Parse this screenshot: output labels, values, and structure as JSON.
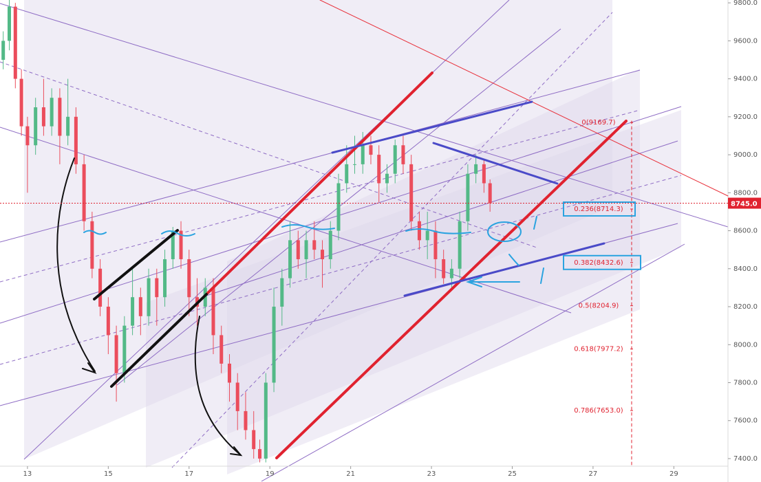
{
  "chart_data": {
    "type": "candlestick",
    "x": [
      12.4,
      12.55,
      12.7,
      12.85,
      13.0,
      13.2,
      13.4,
      13.6,
      13.8,
      14.0,
      14.2,
      14.4,
      14.6,
      14.8,
      15.0,
      15.2,
      15.4,
      15.6,
      15.8,
      16.0,
      16.2,
      16.4,
      16.6,
      16.8,
      17.0,
      17.2,
      17.4,
      17.6,
      17.8,
      18.0,
      18.2,
      18.4,
      18.6,
      18.75,
      18.9,
      19.1,
      19.3,
      19.5,
      19.7,
      19.9,
      20.1,
      20.3,
      20.5,
      20.7,
      20.9,
      21.1,
      21.3,
      21.5,
      21.7,
      21.9,
      22.1,
      22.3,
      22.5,
      22.7,
      22.9,
      23.1,
      23.3,
      23.5,
      23.7,
      23.9,
      24.1,
      24.3,
      24.45
    ],
    "open": [
      9500,
      9600,
      9780,
      9400,
      9150,
      9050,
      9250,
      9150,
      9300,
      9100,
      9200,
      8950,
      8650,
      8400,
      8200,
      8050,
      7850,
      8100,
      8250,
      8150,
      8350,
      8250,
      8450,
      8600,
      8450,
      8250,
      8200,
      8300,
      8050,
      7900,
      7800,
      7650,
      7550,
      7450,
      7400,
      7800,
      8200,
      8350,
      8550,
      8450,
      8550,
      8500,
      8450,
      8600,
      8850,
      8950,
      8950,
      9050,
      9000,
      8850,
      8900,
      9050,
      8950,
      8650,
      8550,
      8600,
      8450,
      8350,
      8400,
      8650,
      8900,
      8950,
      8850
    ],
    "high": [
      9650,
      9820,
      9800,
      9450,
      9200,
      9300,
      9400,
      9350,
      9350,
      9400,
      9250,
      9000,
      8700,
      8450,
      8250,
      8100,
      8150,
      8400,
      8300,
      8400,
      8400,
      8500,
      8620,
      8650,
      8500,
      8350,
      8350,
      8350,
      8100,
      7950,
      7850,
      7750,
      7650,
      7500,
      7850,
      8300,
      8400,
      8650,
      8600,
      8600,
      8650,
      8550,
      8650,
      8900,
      9050,
      9100,
      9120,
      9100,
      9050,
      8950,
      9080,
      9100,
      9000,
      8700,
      8700,
      8650,
      8500,
      8450,
      8700,
      8950,
      9000,
      8980,
      8870
    ],
    "low": [
      9450,
      9550,
      9350,
      9100,
      8800,
      9000,
      9100,
      9100,
      8950,
      9050,
      8900,
      8600,
      8350,
      8150,
      7950,
      7700,
      7800,
      8050,
      8050,
      8100,
      8100,
      8200,
      8400,
      8400,
      8150,
      8100,
      8150,
      7950,
      7850,
      7700,
      7550,
      7500,
      7400,
      7380,
      7380,
      7750,
      8100,
      8300,
      8400,
      8350,
      8450,
      8300,
      8400,
      8550,
      8800,
      8900,
      8900,
      8950,
      8750,
      8800,
      8850,
      8900,
      8600,
      8500,
      8450,
      8350,
      8320,
      8300,
      8350,
      8600,
      8850,
      8800,
      8700
    ],
    "close": [
      9600,
      9780,
      9400,
      9150,
      9050,
      9250,
      9150,
      9300,
      9100,
      9200,
      8950,
      8650,
      8400,
      8200,
      8050,
      7850,
      8100,
      8250,
      8150,
      8350,
      8250,
      8450,
      8600,
      8450,
      8250,
      8200,
      8300,
      8050,
      7900,
      7800,
      7650,
      7550,
      7450,
      7400,
      7800,
      8200,
      8350,
      8550,
      8450,
      8550,
      8500,
      8450,
      8600,
      8850,
      8950,
      8950,
      9050,
      9000,
      8850,
      8900,
      9050,
      8950,
      8650,
      8550,
      8600,
      8450,
      8350,
      8400,
      8650,
      8900,
      8950,
      8850,
      8745
    ],
    "up_color": "#53b987",
    "down_color": "#eb4d5c",
    "xlim": [
      12.32,
      30.34
    ],
    "xticks": [
      13,
      15,
      17,
      19,
      21,
      23,
      25,
      27,
      29
    ],
    "ylim": [
      7360,
      9815
    ],
    "yticks": [
      {
        "value": 7400,
        "label": "7400.0"
      },
      {
        "value": 7600,
        "label": "7600.0"
      },
      {
        "value": 7800,
        "label": "7800.0"
      },
      {
        "value": 8000,
        "label": "8000.0"
      },
      {
        "value": 8200,
        "label": "8200.0"
      },
      {
        "value": 8400,
        "label": "8400.0"
      },
      {
        "value": 8600,
        "label": "8600.0"
      },
      {
        "value": 8800,
        "label": "8800.0"
      },
      {
        "value": 9000,
        "label": "9000.0"
      },
      {
        "value": 9200,
        "label": "9200.0"
      },
      {
        "value": 9400,
        "label": "9400.0"
      },
      {
        "value": 9600,
        "label": "9600.0"
      },
      {
        "value": 9800,
        "label": "9800.0"
      }
    ],
    "last_price": {
      "value": 8745,
      "label": "8745.0"
    },
    "fib_levels": [
      {
        "value": 9169.7,
        "label": "0(9169.7)"
      },
      {
        "value": 8714.3,
        "label": "0.236(8714.3)"
      },
      {
        "value": 8432.6,
        "label": "0.382(8432.6)"
      },
      {
        "value": 8204.9,
        "label": "0.5(8204.9)"
      },
      {
        "value": 7977.2,
        "label": "0.618(7977.2)"
      },
      {
        "value": 7653.0,
        "label": "0.786(7653.0)"
      }
    ],
    "fib_boxed": [
      1,
      2
    ]
  }
}
